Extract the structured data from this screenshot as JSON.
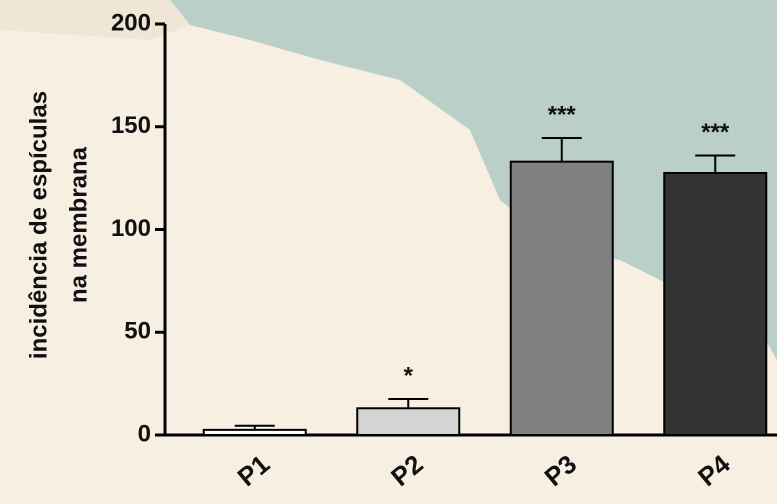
{
  "chart_data": {
    "type": "bar",
    "ylabel": [
      "incidência de espículas",
      "na membrana"
    ],
    "categories": [
      "P1",
      "P2",
      "P3",
      "P4"
    ],
    "values": [
      2.5,
      13,
      133,
      127.5
    ],
    "errors": [
      2,
      4.5,
      11.5,
      8.5
    ],
    "colors": [
      "#ffffff",
      "#d4d4d4",
      "#808080",
      "#333333"
    ],
    "annotations": [
      null,
      "*",
      "***",
      "***"
    ],
    "ylim": [
      0,
      200
    ],
    "yticks": [
      0,
      50,
      100,
      150,
      200
    ],
    "grid": false
  }
}
